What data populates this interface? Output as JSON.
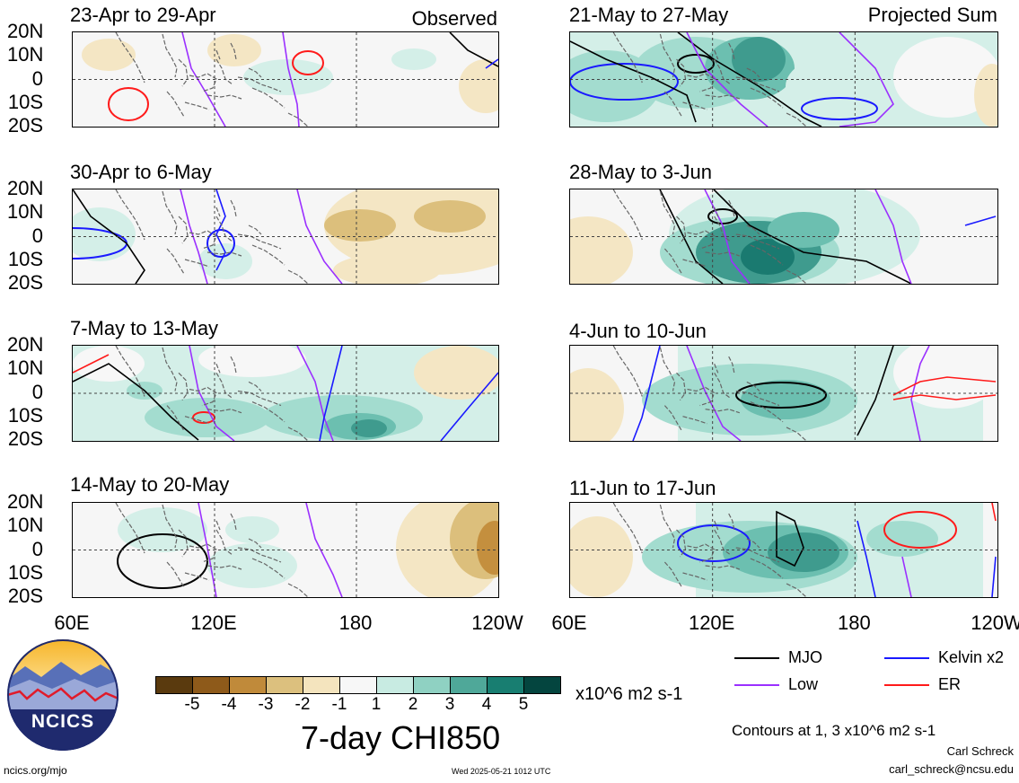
{
  "panels": [
    {
      "title": "23-Apr to 29-Apr",
      "tag": "Observed"
    },
    {
      "title": "21-May to 27-May",
      "tag": "Projected Sum"
    },
    {
      "title": "30-Apr to 6-May",
      "tag": ""
    },
    {
      "title": "28-May to 3-Jun",
      "tag": ""
    },
    {
      "title": "7-May to 13-May",
      "tag": ""
    },
    {
      "title": "4-Jun to 10-Jun",
      "tag": ""
    },
    {
      "title": "14-May to 20-May",
      "tag": ""
    },
    {
      "title": "11-Jun to 17-Jun",
      "tag": ""
    }
  ],
  "lat_labels": [
    "20N",
    "10N",
    "0",
    "10S",
    "20S"
  ],
  "lon_labels": [
    "60E",
    "120E",
    "180",
    "120W"
  ],
  "colorbar": {
    "ticks": [
      "-5",
      "-4",
      "-3",
      "-2",
      "-1",
      "1",
      "2",
      "3",
      "4",
      "5"
    ],
    "units": "x10^6 m2 s-1",
    "title": "7-day CHI850",
    "colors": [
      "#5a3a0e",
      "#8e5a1a",
      "#c08a3a",
      "#dcc07e",
      "#f4e4be",
      "#f7f7f7",
      "#c8ebe2",
      "#8fd1c2",
      "#4fa899",
      "#187e71",
      "#04453f"
    ]
  },
  "legend": [
    {
      "label": "MJO",
      "color": "#000000"
    },
    {
      "label": "Kelvin x2",
      "color": "#1a1aff"
    },
    {
      "label": "Low",
      "color": "#9b30ff"
    },
    {
      "label": "ER",
      "color": "#ff1a1a"
    }
  ],
  "contour_note": "Contours at 1, 3 x10^6 m2 s-1",
  "author": "Carl Schreck",
  "email": "carl_schreck@ncsu.edu",
  "site": "ncics.org/mjo",
  "timestamp": "Wed 2025-05-21 1012 UTC",
  "logo_text": "NCICS"
}
